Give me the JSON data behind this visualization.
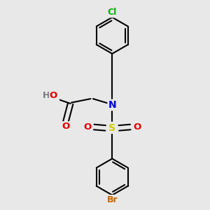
{
  "bg_color": "#e8e8e8",
  "bond_color": "#000000",
  "bond_width": 1.5,
  "atom_colors": {
    "N": "#0000ee",
    "O": "#ee0000",
    "S": "#cccc00",
    "Cl": "#00bb00",
    "Br": "#cc6600",
    "H": "#777777",
    "C": "#000000"
  },
  "font_size": 9.5
}
